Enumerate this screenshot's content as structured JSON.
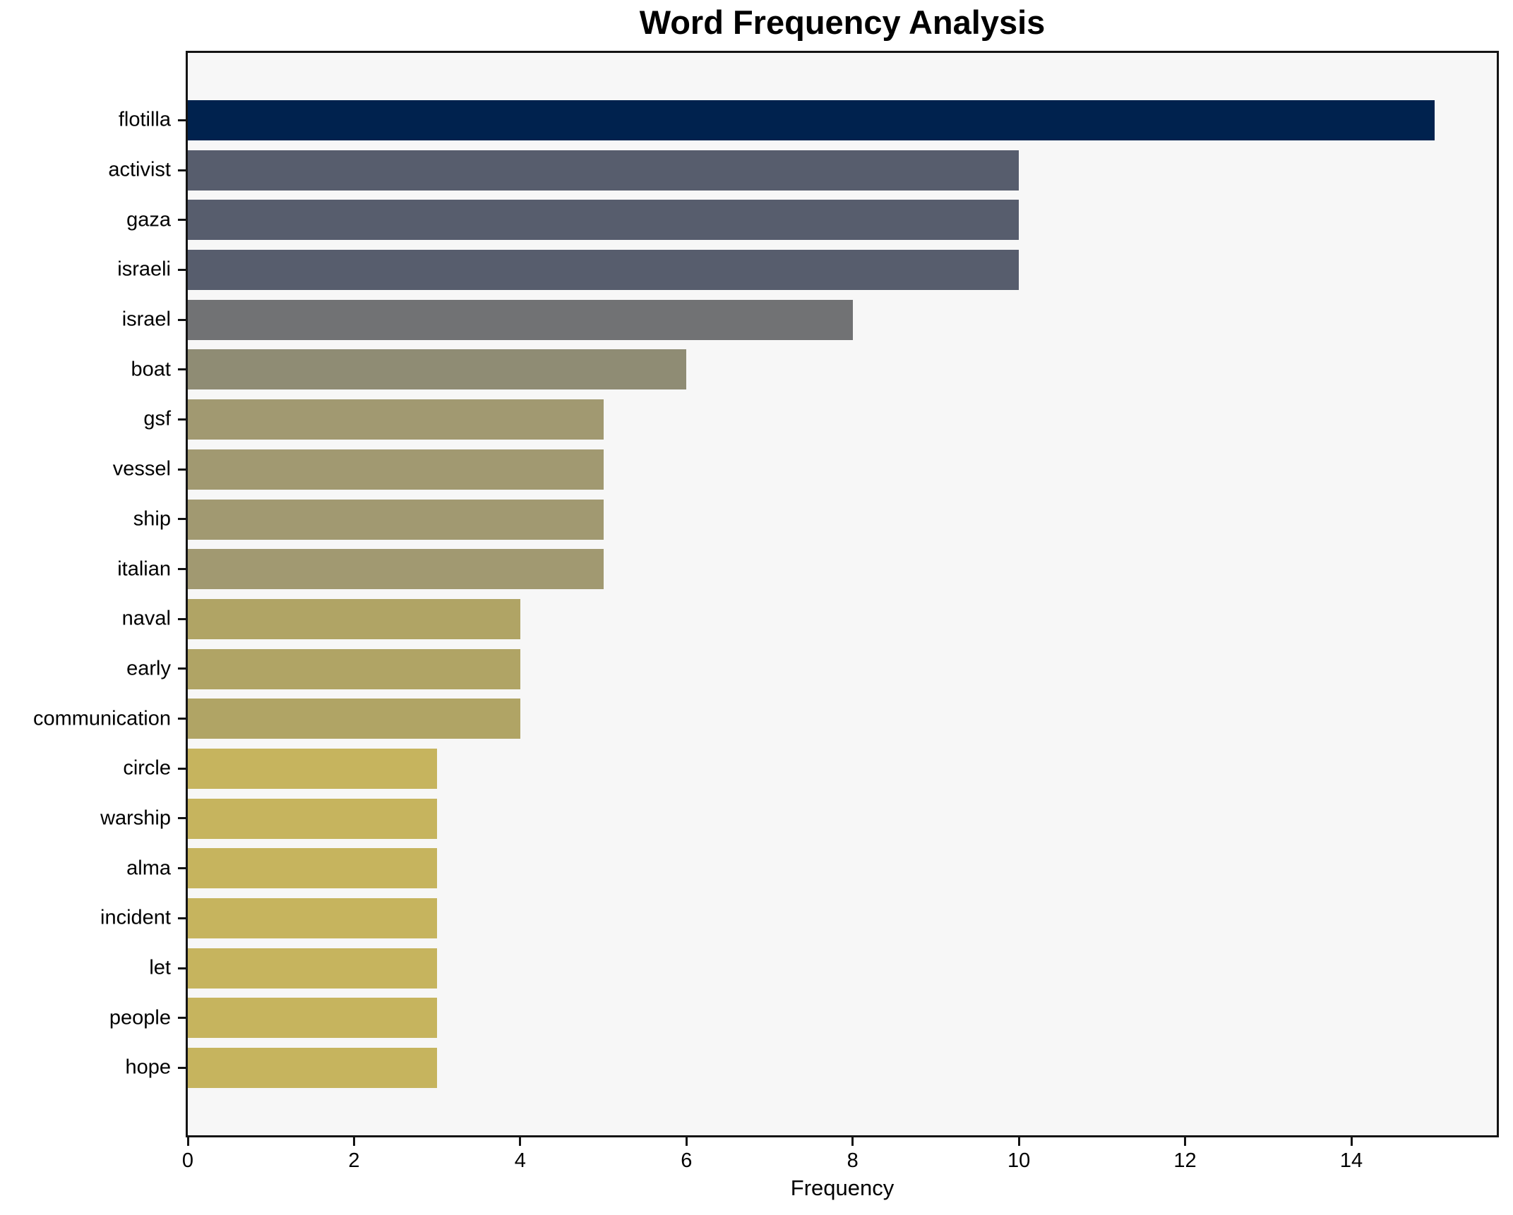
{
  "chart_data": {
    "type": "bar",
    "orientation": "horizontal",
    "title": "Word Frequency Analysis",
    "xlabel": "Frequency",
    "ylabel": "",
    "xlim": [
      0,
      15.75
    ],
    "x_ticks": [
      0,
      2,
      4,
      6,
      8,
      10,
      12,
      14
    ],
    "grid": false,
    "legend": false,
    "plot_background": "#f7f7f7",
    "figure_background": "#ffffff",
    "spine_color": "#141414",
    "categories": [
      "flotilla",
      "activist",
      "gaza",
      "israeli",
      "israel",
      "boat",
      "gsf",
      "vessel",
      "ship",
      "italian",
      "naval",
      "early",
      "communication",
      "circle",
      "warship",
      "alma",
      "incident",
      "let",
      "people",
      "hope"
    ],
    "values": [
      15,
      10,
      10,
      10,
      8,
      6,
      5,
      5,
      5,
      5,
      4,
      4,
      4,
      3,
      3,
      3,
      3,
      3,
      3,
      3
    ],
    "bar_colors": [
      "#00224e",
      "#575d6d",
      "#575d6d",
      "#575d6d",
      "#717274",
      "#8f8c74",
      "#a19971",
      "#a19971",
      "#a19971",
      "#a19971",
      "#b0a465",
      "#b0a465",
      "#b0a465",
      "#c6b45e",
      "#c6b45e",
      "#c6b45e",
      "#c6b45e",
      "#c6b45e",
      "#c6b45e",
      "#c6b45e"
    ]
  }
}
